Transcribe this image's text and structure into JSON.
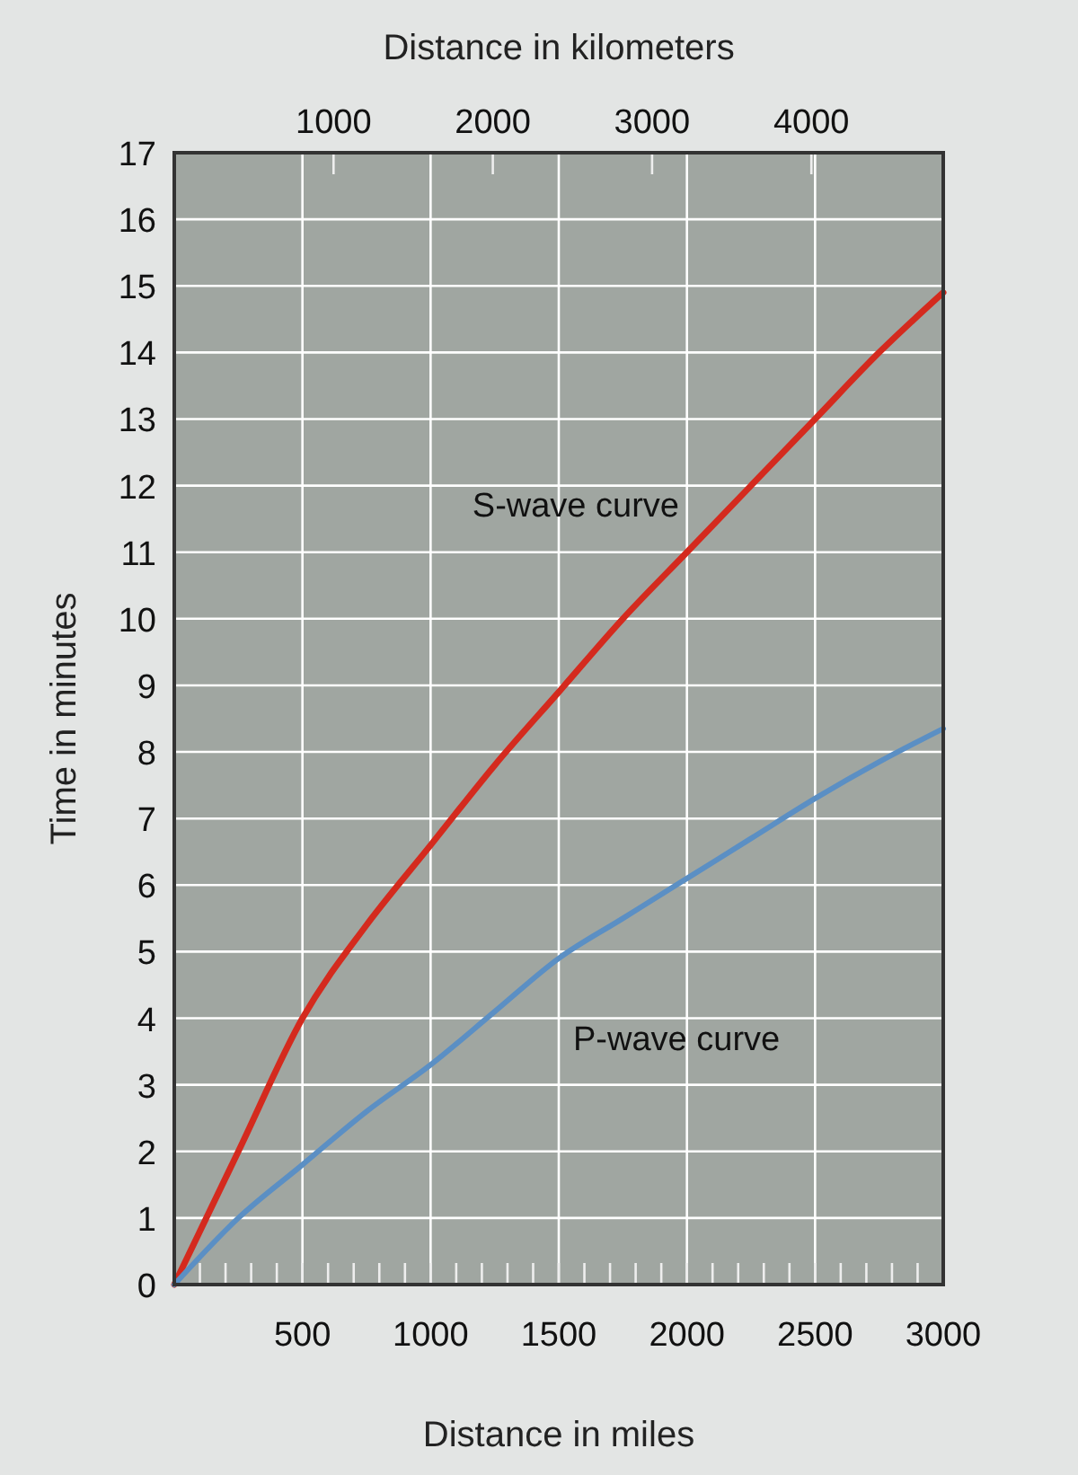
{
  "chart_data": {
    "type": "line",
    "xlabel": "Distance in miles",
    "ylabel": "Time in minutes",
    "x2label": "Distance in kilometers",
    "xlim": [
      0,
      3000
    ],
    "xticks": [
      {
        "value": 0,
        "label": null
      },
      {
        "value": 100,
        "label": null
      },
      {
        "value": 200,
        "label": null
      },
      {
        "value": 300,
        "label": null
      },
      {
        "value": 400,
        "label": null
      },
      500,
      {
        "value": 600,
        "label": null
      },
      {
        "value": 700,
        "label": null
      },
      {
        "value": 800,
        "label": null
      },
      {
        "value": 900,
        "label": null
      },
      1000,
      {
        "value": 1100,
        "label": null
      },
      {
        "value": 1200,
        "label": null
      },
      {
        "value": 1300,
        "label": null
      },
      {
        "value": 1400,
        "label": null
      },
      1500,
      {
        "value": 1600,
        "label": null
      },
      {
        "value": 1700,
        "label": null
      },
      {
        "value": 1800,
        "label": null
      },
      {
        "value": 1900,
        "label": null
      },
      2000,
      {
        "value": 2100,
        "label": null
      },
      {
        "value": 2200,
        "label": null
      },
      {
        "value": 2300,
        "label": null
      },
      {
        "value": 2400,
        "label": null
      },
      2500,
      {
        "value": 2600,
        "label": null
      },
      {
        "value": 2700,
        "label": null
      },
      {
        "value": 2800,
        "label": null
      },
      {
        "value": 2900,
        "label": null
      },
      3000
    ],
    "x2lim": [
      0,
      4828
    ],
    "x2ticks": [
      1000,
      2000,
      3000,
      4000
    ],
    "ylim": [
      0,
      17
    ],
    "yticks": [
      0,
      1,
      2,
      3,
      4,
      5,
      6,
      7,
      8,
      9,
      10,
      11,
      12,
      13,
      14,
      15,
      16,
      17
    ],
    "grid": true,
    "marker": "none",
    "line_style": "solid",
    "x": [
      0,
      250,
      500,
      750,
      1000,
      1250,
      1500,
      1750,
      2000,
      2250,
      2500,
      2750,
      3000
    ],
    "series": [
      {
        "name": "S-wave curve",
        "color": "#d42a1e",
        "values": [
          0,
          2,
          4,
          5.4,
          6.6,
          7.8,
          8.9,
          10,
          11,
          12,
          13,
          14,
          14.9
        ]
      },
      {
        "name": "P-wave curve",
        "color": "#5b8fc4",
        "values": [
          0,
          1,
          1.8,
          2.6,
          3.3,
          4.1,
          4.9,
          5.5,
          6.1,
          6.7,
          7.3,
          7.85,
          8.35
        ]
      }
    ]
  }
}
